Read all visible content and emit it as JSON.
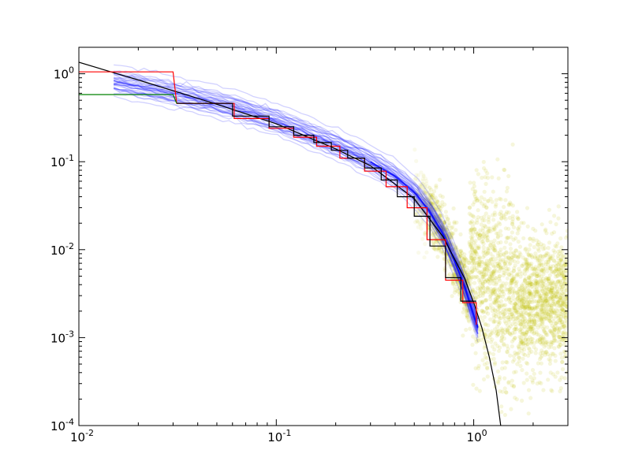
{
  "chart_data": {
    "type": "line",
    "title": "",
    "xlabel": "",
    "ylabel": "",
    "xscale": "log",
    "yscale": "log",
    "xlim": [
      0.01,
      3.0
    ],
    "ylim": [
      0.0001,
      2.0
    ],
    "grid": false,
    "legend": "none",
    "x_ticks": [
      {
        "value": 0.01,
        "base": "10",
        "exp": "-2"
      },
      {
        "value": 0.1,
        "base": "10",
        "exp": "-1"
      },
      {
        "value": 1,
        "base": "10",
        "exp": "0"
      }
    ],
    "y_ticks": [
      {
        "value": 0.0001,
        "base": "10",
        "exp": "-4"
      },
      {
        "value": 0.001,
        "base": "10",
        "exp": "-3"
      },
      {
        "value": 0.01,
        "base": "10",
        "exp": "-2"
      },
      {
        "value": 0.1,
        "base": "10",
        "exp": "-1"
      },
      {
        "value": 1,
        "base": "10",
        "exp": "0"
      }
    ],
    "colors": {
      "red_step": "#ff0000",
      "green_step": "#008000",
      "black_step": "#000000",
      "black_curve": "#000000",
      "blue_band": "#0000ff",
      "yellow_cloud": "#bfbf00"
    },
    "series": [
      {
        "kind": "curve",
        "color": "#000000",
        "x": [
          0.01,
          0.02,
          0.05,
          0.1,
          0.2,
          0.3,
          0.5,
          0.7,
          0.9,
          1.0,
          1.1,
          1.2,
          1.3,
          1.37
        ],
        "y": [
          1.35,
          0.85,
          0.45,
          0.27,
          0.14,
          0.09,
          0.038,
          0.014,
          0.0047,
          0.0025,
          0.0013,
          0.0006,
          0.00025,
          0.0001
        ]
      },
      {
        "kind": "step",
        "color": "#ff0000",
        "x": [
          0.01,
          0.03,
          0.03,
          0.0313,
          0.0612,
          0.0612,
          0.0919,
          0.0919,
          0.1225,
          0.1225,
          0.16,
          0.16,
          0.21,
          0.21,
          0.28,
          0.28,
          0.36,
          0.36,
          0.46,
          0.46,
          0.58,
          0.58,
          0.72,
          0.72,
          0.88,
          0.88,
          1.03,
          1.03
        ],
        "y": [
          1.05,
          1.05,
          1.05,
          0.46,
          0.46,
          0.31,
          0.31,
          0.24,
          0.24,
          0.19,
          0.19,
          0.15,
          0.15,
          0.11,
          0.11,
          0.078,
          0.078,
          0.052,
          0.052,
          0.03,
          0.03,
          0.013,
          0.013,
          0.0045,
          0.0045,
          0.0025,
          0.0025,
          0.0014
        ]
      },
      {
        "kind": "step",
        "color": "#008000",
        "x": [
          0.01,
          0.03,
          0.0313
        ],
        "y": [
          0.58,
          0.58,
          0.46
        ]
      },
      {
        "kind": "step",
        "color": "#000000",
        "x": [
          0.0313,
          0.06,
          0.06,
          0.0919,
          0.0919,
          0.1225,
          0.1225,
          0.155,
          0.155,
          0.19,
          0.19,
          0.23,
          0.23,
          0.28,
          0.28,
          0.34,
          0.34,
          0.41,
          0.41,
          0.5,
          0.5,
          0.6,
          0.6,
          0.72,
          0.72,
          0.86,
          0.86,
          1.03
        ],
        "y": [
          0.46,
          0.46,
          0.33,
          0.33,
          0.25,
          0.25,
          0.2,
          0.2,
          0.165,
          0.165,
          0.135,
          0.135,
          0.11,
          0.11,
          0.085,
          0.085,
          0.062,
          0.062,
          0.04,
          0.04,
          0.024,
          0.024,
          0.011,
          0.011,
          0.0048,
          0.0048,
          0.0026,
          0.0026
        ]
      }
    ],
    "blue_band": {
      "x": [
        0.015,
        0.03,
        0.06,
        0.1,
        0.2,
        0.3,
        0.4,
        0.5,
        0.6,
        0.7,
        0.8,
        0.9,
        1.0,
        1.05
      ],
      "center": [
        0.82,
        0.6,
        0.42,
        0.29,
        0.155,
        0.1,
        0.068,
        0.045,
        0.027,
        0.015,
        0.0075,
        0.0038,
        0.0018,
        0.0013
      ],
      "spread_factor": 1.35,
      "count": 40
    },
    "yellow_cloud": {
      "x_range": [
        0.5,
        3.0
      ],
      "count": 2600,
      "plateau_y": 0.0025
    }
  }
}
